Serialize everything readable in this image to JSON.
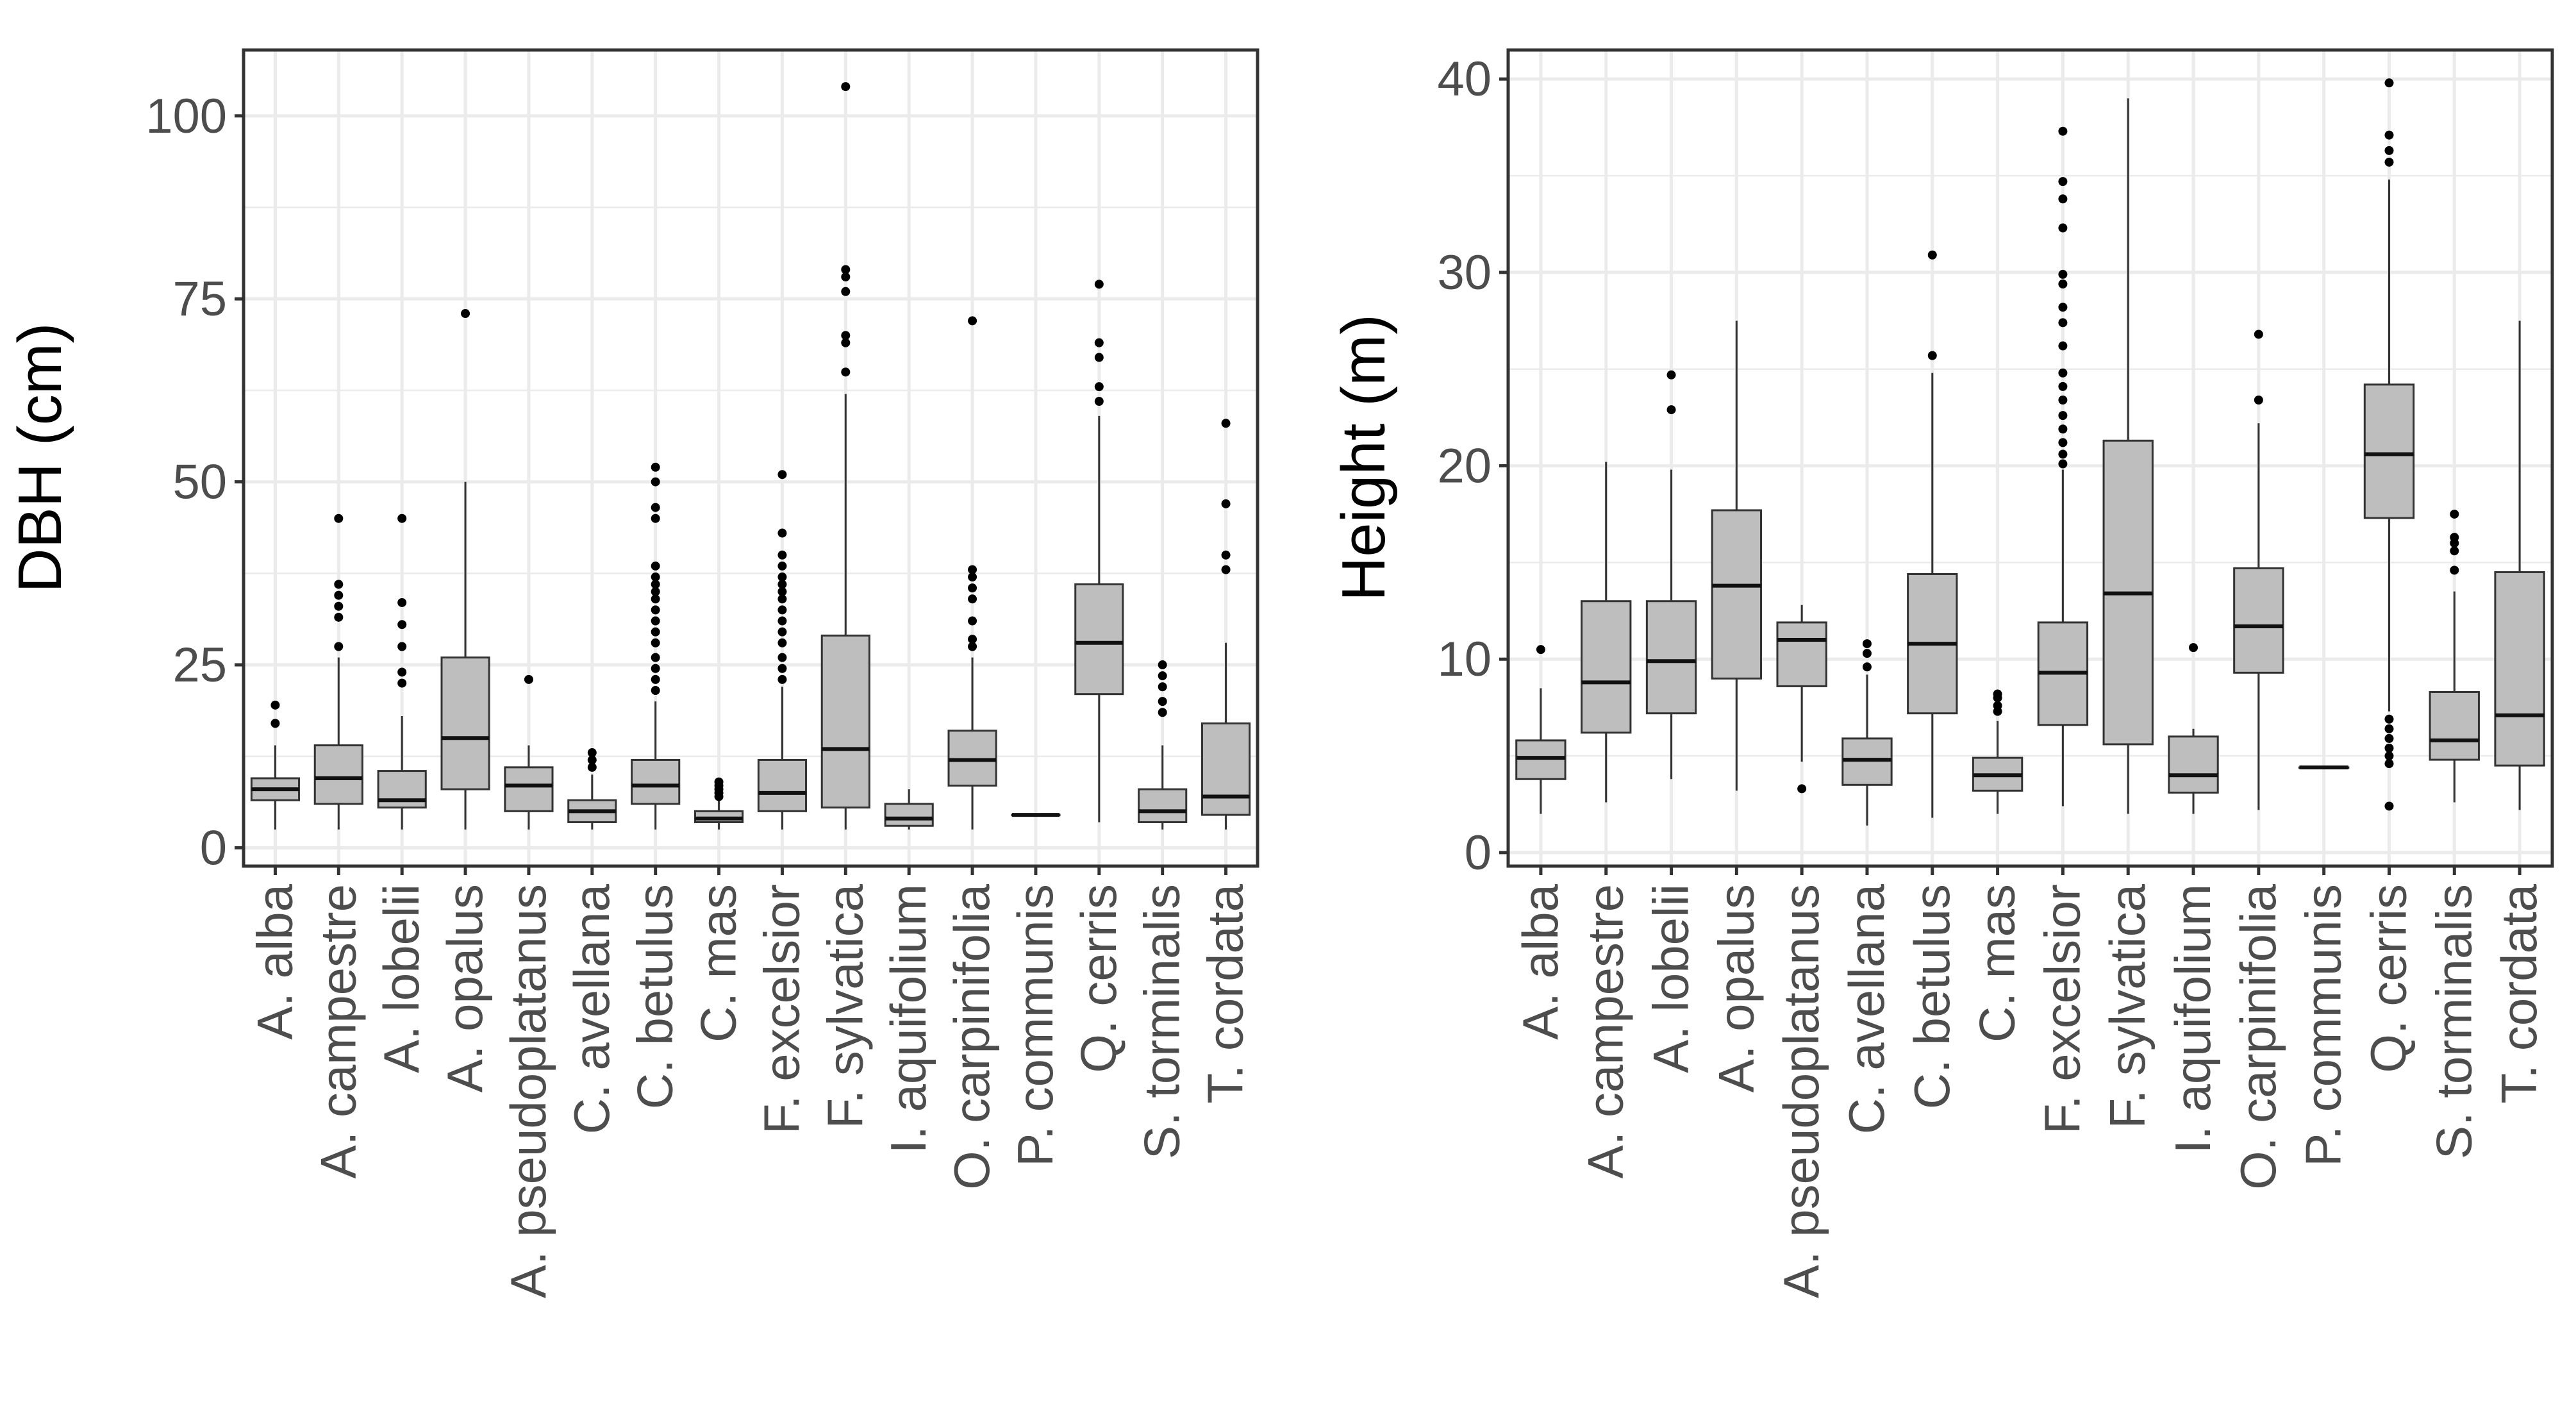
{
  "style": {
    "box_fill": "#bebebe",
    "box_stroke": "#333333",
    "grid_color": "#ebebeb",
    "panel_border": "#333333",
    "text_color": "#4d4d4d",
    "title_color": "#000000"
  },
  "chart_data": [
    {
      "type": "boxplot",
      "ylabel": "DBH (cm)",
      "xlabel": "",
      "ylim": [
        -2.5,
        109
      ],
      "yticks": [
        0,
        25,
        50,
        75,
        100
      ],
      "grid": true,
      "categories": [
        "A. alba",
        "A. campestre",
        "A. lobelii",
        "A. opalus",
        "A. pseudoplatanus",
        "C. avellana",
        "C. betulus",
        "C. mas",
        "F. excelsior",
        "F. sylvatica",
        "I. aquifolium",
        "O. carpinifolia",
        "P. communis",
        "Q. cerris",
        "S. torminalis",
        "T. cordata"
      ],
      "boxes": [
        {
          "q1": 6.5,
          "median": 8,
          "q3": 9.5,
          "lo": 2.5,
          "hi": 14,
          "outliers": [
            17,
            19.5
          ]
        },
        {
          "q1": 6,
          "median": 9.5,
          "q3": 14,
          "lo": 2.5,
          "hi": 26,
          "outliers": [
            27.5,
            31.5,
            33,
            34.5,
            36,
            45
          ]
        },
        {
          "q1": 5.5,
          "median": 6.5,
          "q3": 10.5,
          "lo": 2.5,
          "hi": 18,
          "outliers": [
            22.5,
            24,
            27.5,
            30.5,
            33.5,
            45
          ]
        },
        {
          "q1": 8,
          "median": 15,
          "q3": 26,
          "lo": 2.5,
          "hi": 50,
          "outliers": [
            73
          ]
        },
        {
          "q1": 5,
          "median": 8.5,
          "q3": 11,
          "lo": 2.5,
          "hi": 14,
          "outliers": [
            23
          ]
        },
        {
          "q1": 3.5,
          "median": 5,
          "q3": 6.5,
          "lo": 2.5,
          "hi": 10,
          "outliers": [
            11,
            12,
            13
          ]
        },
        {
          "q1": 6,
          "median": 8.5,
          "q3": 12,
          "lo": 2.5,
          "hi": 20,
          "outliers": [
            21.5,
            23,
            24.5,
            26,
            28,
            29.5,
            31,
            32.5,
            34,
            35,
            36,
            37,
            38.5,
            45,
            46.5,
            50,
            52
          ]
        },
        {
          "q1": 3.5,
          "median": 4,
          "q3": 5,
          "lo": 2.5,
          "hi": 6.5,
          "outliers": [
            7,
            7.5,
            8,
            8.5,
            9
          ]
        },
        {
          "q1": 5,
          "median": 7.5,
          "q3": 12,
          "lo": 2.5,
          "hi": 22,
          "outliers": [
            23,
            24.5,
            26,
            28,
            29.5,
            31,
            32.5,
            34,
            35,
            36,
            37,
            38.5,
            40,
            43,
            51
          ]
        },
        {
          "q1": 5.5,
          "median": 13.5,
          "q3": 29,
          "lo": 2.5,
          "hi": 62,
          "outliers": [
            65,
            69,
            70,
            76,
            78,
            79,
            104
          ]
        },
        {
          "q1": 3,
          "median": 4,
          "q3": 6,
          "lo": 2.5,
          "hi": 8,
          "outliers": []
        },
        {
          "q1": 8.5,
          "median": 12,
          "q3": 16,
          "lo": 2.5,
          "hi": 26,
          "outliers": [
            27.5,
            28.5,
            31,
            34,
            35.5,
            37,
            38,
            72
          ]
        },
        {
          "q1": 4.5,
          "median": 4.5,
          "q3": 4.5,
          "lo": 4.5,
          "hi": 4.5,
          "outliers": []
        },
        {
          "q1": 21,
          "median": 28,
          "q3": 36,
          "lo": 3.5,
          "hi": 59,
          "outliers": [
            61,
            63,
            67,
            69,
            77
          ]
        },
        {
          "q1": 3.5,
          "median": 5,
          "q3": 8,
          "lo": 2.5,
          "hi": 14,
          "outliers": [
            18.5,
            20,
            22,
            23.5,
            25
          ]
        },
        {
          "q1": 4.5,
          "median": 7,
          "q3": 17,
          "lo": 2.5,
          "hi": 28,
          "outliers": [
            38,
            40,
            47,
            58
          ]
        }
      ]
    },
    {
      "type": "boxplot",
      "ylabel": "Height (m)",
      "xlabel": "",
      "ylim": [
        -0.7,
        41.5
      ],
      "yticks": [
        0,
        10,
        20,
        30,
        40
      ],
      "grid": true,
      "categories": [
        "A. alba",
        "A. campestre",
        "A. lobelii",
        "A. opalus",
        "A. pseudoplatanus",
        "C. avellana",
        "C. betulus",
        "C. mas",
        "F. excelsior",
        "F. sylvatica",
        "I. aquifolium",
        "O. carpinifolia",
        "P. communis",
        "Q. cerris",
        "S. torminalis",
        "T. cordata"
      ],
      "boxes": [
        {
          "q1": 3.8,
          "median": 4.9,
          "q3": 5.8,
          "lo": 2,
          "hi": 8.5,
          "outliers": [
            10.5
          ]
        },
        {
          "q1": 6.2,
          "median": 8.8,
          "q3": 13,
          "lo": 2.6,
          "hi": 20.2,
          "outliers": []
        },
        {
          "q1": 7.2,
          "median": 9.9,
          "q3": 13,
          "lo": 3.8,
          "hi": 19.8,
          "outliers": [
            22.9,
            24.7
          ]
        },
        {
          "q1": 9,
          "median": 13.8,
          "q3": 17.7,
          "lo": 3.2,
          "hi": 27.5,
          "outliers": []
        },
        {
          "q1": 8.6,
          "median": 11,
          "q3": 11.9,
          "lo": 4.7,
          "hi": 12.8,
          "outliers": [
            3.3
          ]
        },
        {
          "q1": 3.5,
          "median": 4.8,
          "q3": 5.9,
          "lo": 1.4,
          "hi": 9.2,
          "outliers": [
            9.6,
            10.3,
            10.8
          ]
        },
        {
          "q1": 7.2,
          "median": 10.8,
          "q3": 14.4,
          "lo": 1.8,
          "hi": 24.8,
          "outliers": [
            25.7,
            30.9
          ]
        },
        {
          "q1": 3.2,
          "median": 4,
          "q3": 4.9,
          "lo": 2,
          "hi": 6.8,
          "outliers": [
            7.3,
            7.6,
            8,
            8.2
          ]
        },
        {
          "q1": 6.6,
          "median": 9.3,
          "q3": 11.9,
          "lo": 2.4,
          "hi": 19.8,
          "outliers": [
            20.1,
            20.6,
            21.2,
            21.9,
            22.6,
            23.4,
            24.1,
            24.8,
            26.2,
            27.4,
            28.2,
            29.4,
            29.9,
            32.3,
            33.8,
            34.7,
            37.3
          ]
        },
        {
          "q1": 5.6,
          "median": 13.4,
          "q3": 21.3,
          "lo": 2,
          "hi": 39,
          "outliers": []
        },
        {
          "q1": 3.1,
          "median": 4,
          "q3": 6,
          "lo": 2,
          "hi": 6.4,
          "outliers": [
            10.6
          ]
        },
        {
          "q1": 9.3,
          "median": 11.7,
          "q3": 14.7,
          "lo": 2.2,
          "hi": 22.2,
          "outliers": [
            23.4,
            26.8
          ]
        },
        {
          "q1": 4.4,
          "median": 4.4,
          "q3": 4.4,
          "lo": 4.4,
          "hi": 4.4,
          "outliers": []
        },
        {
          "q1": 17.3,
          "median": 20.6,
          "q3": 24.2,
          "lo": 7.3,
          "hi": 34.8,
          "outliers": [
            2.4,
            4.6,
            5,
            5.4,
            5.9,
            6.4,
            6.9,
            35.7,
            36.3,
            37.1,
            39.8
          ]
        },
        {
          "q1": 4.8,
          "median": 5.8,
          "q3": 8.3,
          "lo": 2.6,
          "hi": 13.5,
          "outliers": [
            14.6,
            15.6,
            16,
            16.3,
            17.5
          ]
        },
        {
          "q1": 4.5,
          "median": 7.1,
          "q3": 14.5,
          "lo": 2.2,
          "hi": 27.5,
          "outliers": []
        }
      ]
    }
  ]
}
